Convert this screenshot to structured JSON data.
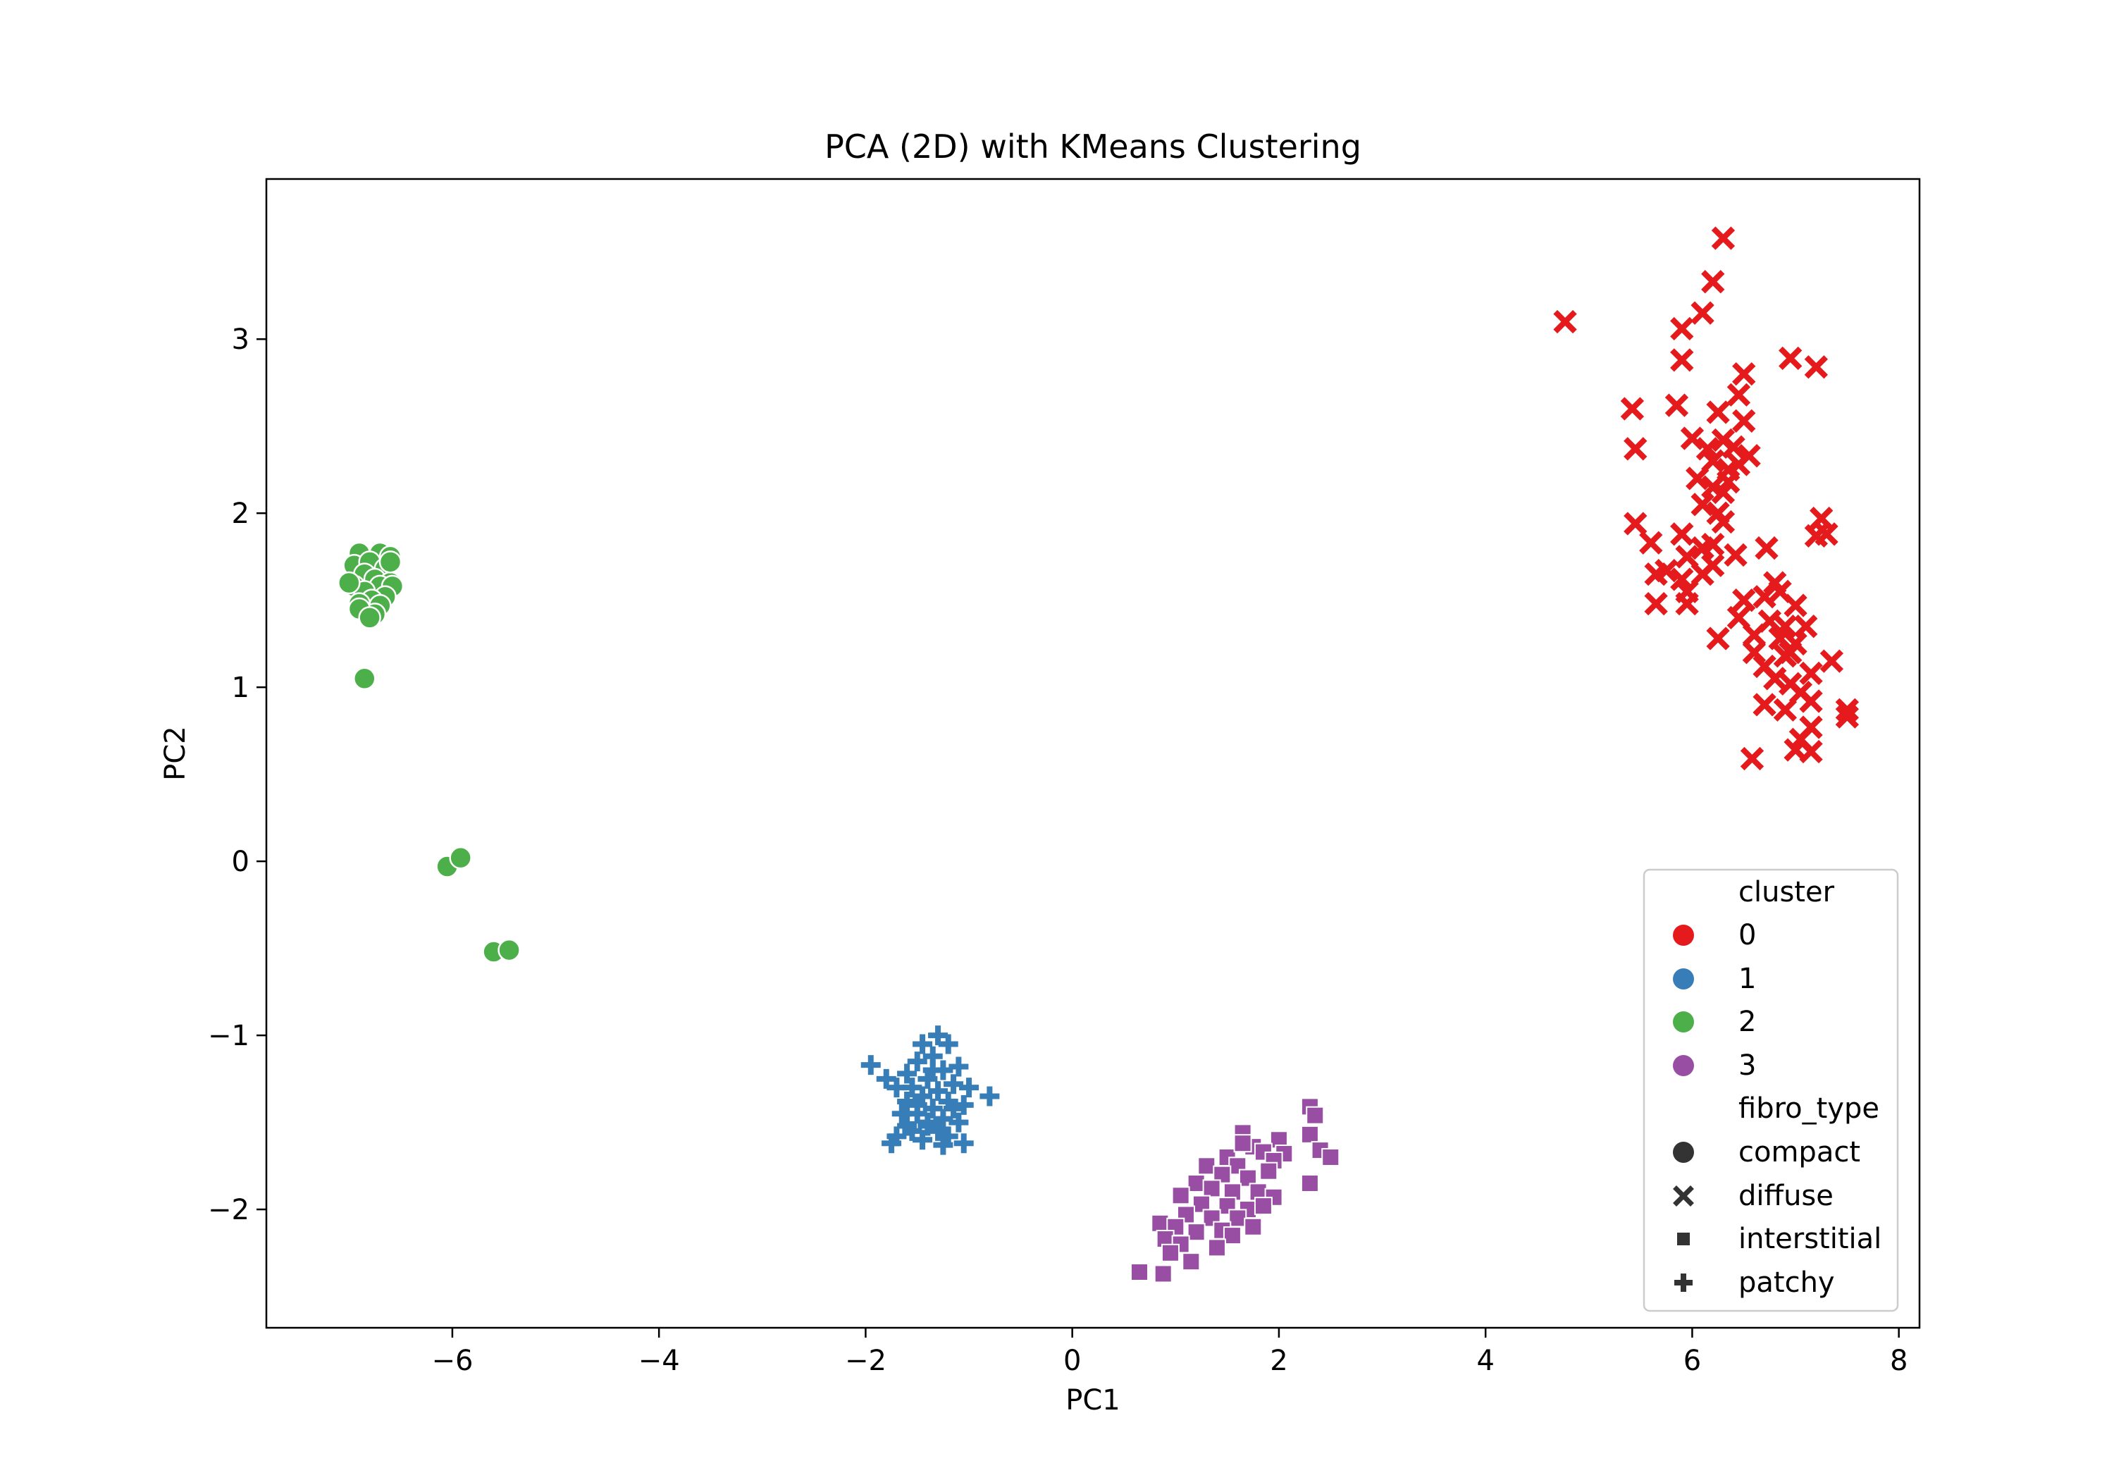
{
  "colors": {
    "cluster_0": "#e41a1c",
    "cluster_1": "#377eb8",
    "cluster_2": "#4daf4a",
    "cluster_3": "#984ea3",
    "legend_shape": "#333333"
  },
  "chart_data": {
    "type": "scatter",
    "title": "PCA (2D) with KMeans Clustering",
    "xlabel": "PC1",
    "ylabel": "PC2",
    "xlim": [
      -7.8,
      8.2
    ],
    "ylim": [
      -2.68,
      3.92
    ],
    "xticks": [
      -6,
      -4,
      -2,
      0,
      2,
      4,
      6,
      8
    ],
    "xtick_labels": [
      "−6",
      "−4",
      "−2",
      "0",
      "2",
      "4",
      "6",
      "8"
    ],
    "yticks": [
      -2,
      -1,
      0,
      1,
      2,
      3
    ],
    "ytick_labels": [
      "−2",
      "−1",
      "0",
      "1",
      "2",
      "3"
    ],
    "grid": false,
    "legend": {
      "placement": "lower-right",
      "hue_title": "cluster",
      "hue_entries": [
        "0",
        "1",
        "2",
        "3"
      ],
      "style_title": "fibro_type",
      "style_entries": [
        {
          "label": "compact",
          "marker": "circle"
        },
        {
          "label": "diffuse",
          "marker": "x"
        },
        {
          "label": "interstitial",
          "marker": "square"
        },
        {
          "label": "patchy",
          "marker": "plus"
        }
      ]
    },
    "series": [
      {
        "cluster": "0",
        "fibro_type": "diffuse",
        "marker": "x",
        "points": [
          [
            6.3,
            3.58
          ],
          [
            6.2,
            3.33
          ],
          [
            6.1,
            3.15
          ],
          [
            5.9,
            3.06
          ],
          [
            4.77,
            3.1
          ],
          [
            5.9,
            2.88
          ],
          [
            6.95,
            2.89
          ],
          [
            7.2,
            2.84
          ],
          [
            6.5,
            2.8
          ],
          [
            5.42,
            2.6
          ],
          [
            5.85,
            2.62
          ],
          [
            6.25,
            2.58
          ],
          [
            6.45,
            2.68
          ],
          [
            6.5,
            2.53
          ],
          [
            5.45,
            2.37
          ],
          [
            6.0,
            2.43
          ],
          [
            6.15,
            2.37
          ],
          [
            6.3,
            2.42
          ],
          [
            6.4,
            2.38
          ],
          [
            6.55,
            2.33
          ],
          [
            6.2,
            2.3
          ],
          [
            6.35,
            2.25
          ],
          [
            6.45,
            2.28
          ],
          [
            6.05,
            2.2
          ],
          [
            6.2,
            2.15
          ],
          [
            6.35,
            2.18
          ],
          [
            6.3,
            2.12
          ],
          [
            6.1,
            2.05
          ],
          [
            6.25,
            2.0
          ],
          [
            6.3,
            1.95
          ],
          [
            5.45,
            1.94
          ],
          [
            7.25,
            1.97
          ],
          [
            7.2,
            1.87
          ],
          [
            7.3,
            1.88
          ],
          [
            5.6,
            1.83
          ],
          [
            5.9,
            1.88
          ],
          [
            6.1,
            1.8
          ],
          [
            6.2,
            1.82
          ],
          [
            5.95,
            1.75
          ],
          [
            6.42,
            1.76
          ],
          [
            6.72,
            1.8
          ],
          [
            5.65,
            1.65
          ],
          [
            5.75,
            1.67
          ],
          [
            5.9,
            1.62
          ],
          [
            6.1,
            1.65
          ],
          [
            6.2,
            1.7
          ],
          [
            5.95,
            1.55
          ],
          [
            5.65,
            1.48
          ],
          [
            5.95,
            1.48
          ],
          [
            6.5,
            1.5
          ],
          [
            6.7,
            1.52
          ],
          [
            6.85,
            1.55
          ],
          [
            6.8,
            1.6
          ],
          [
            7.0,
            1.47
          ],
          [
            6.45,
            1.4
          ],
          [
            6.75,
            1.38
          ],
          [
            6.9,
            1.35
          ],
          [
            7.1,
            1.35
          ],
          [
            6.25,
            1.28
          ],
          [
            6.6,
            1.3
          ],
          [
            6.85,
            1.28
          ],
          [
            7.0,
            1.25
          ],
          [
            6.95,
            1.2
          ],
          [
            6.6,
            1.2
          ],
          [
            6.9,
            1.18
          ],
          [
            7.35,
            1.15
          ],
          [
            6.7,
            1.12
          ],
          [
            7.15,
            1.08
          ],
          [
            6.8,
            1.05
          ],
          [
            6.95,
            1.02
          ],
          [
            7.05,
            0.97
          ],
          [
            7.15,
            0.92
          ],
          [
            6.7,
            0.9
          ],
          [
            6.9,
            0.87
          ],
          [
            7.5,
            0.87
          ],
          [
            7.5,
            0.83
          ],
          [
            7.15,
            0.77
          ],
          [
            7.05,
            0.7
          ],
          [
            7.0,
            0.64
          ],
          [
            7.15,
            0.63
          ],
          [
            6.58,
            0.59
          ]
        ]
      },
      {
        "cluster": "1",
        "fibro_type": "patchy",
        "marker": "plus",
        "points": [
          [
            -1.95,
            -1.17
          ],
          [
            -1.8,
            -1.25
          ],
          [
            -1.6,
            -1.22
          ],
          [
            -1.45,
            -1.05
          ],
          [
            -1.3,
            -1.0
          ],
          [
            -1.2,
            -1.05
          ],
          [
            -1.35,
            -1.12
          ],
          [
            -1.5,
            -1.15
          ],
          [
            -1.1,
            -1.18
          ],
          [
            -1.25,
            -1.2
          ],
          [
            -1.4,
            -1.25
          ],
          [
            -1.55,
            -1.3
          ],
          [
            -1.7,
            -1.3
          ],
          [
            -1.15,
            -1.28
          ],
          [
            -1.0,
            -1.3
          ],
          [
            -1.3,
            -1.32
          ],
          [
            -1.45,
            -1.35
          ],
          [
            -1.6,
            -1.38
          ],
          [
            -1.05,
            -1.4
          ],
          [
            -0.8,
            -1.35
          ],
          [
            -1.2,
            -1.38
          ],
          [
            -1.35,
            -1.42
          ],
          [
            -1.5,
            -1.45
          ],
          [
            -1.65,
            -1.45
          ],
          [
            -1.25,
            -1.48
          ],
          [
            -1.1,
            -1.5
          ],
          [
            -1.4,
            -1.52
          ],
          [
            -1.55,
            -1.55
          ],
          [
            -1.3,
            -1.55
          ],
          [
            -1.2,
            -1.58
          ],
          [
            -1.45,
            -1.6
          ],
          [
            -1.75,
            -1.62
          ],
          [
            -1.25,
            -1.63
          ],
          [
            -1.05,
            -1.62
          ],
          [
            -1.4,
            -1.5
          ],
          [
            -1.6,
            -1.52
          ],
          [
            -1.15,
            -1.42
          ],
          [
            -1.35,
            -1.2
          ],
          [
            -1.5,
            -1.4
          ],
          [
            -1.7,
            -1.58
          ]
        ]
      },
      {
        "cluster": "2",
        "fibro_type": "compact",
        "marker": "circle",
        "points": [
          [
            -6.9,
            1.77
          ],
          [
            -6.7,
            1.77
          ],
          [
            -6.6,
            1.75
          ],
          [
            -6.95,
            1.7
          ],
          [
            -6.8,
            1.72
          ],
          [
            -6.65,
            1.68
          ],
          [
            -6.85,
            1.65
          ],
          [
            -6.75,
            1.62
          ],
          [
            -6.6,
            1.6
          ],
          [
            -6.95,
            1.58
          ],
          [
            -6.7,
            1.58
          ],
          [
            -6.58,
            1.58
          ],
          [
            -6.85,
            1.55
          ],
          [
            -7.0,
            1.6
          ],
          [
            -6.65,
            1.52
          ],
          [
            -6.78,
            1.5
          ],
          [
            -6.9,
            1.48
          ],
          [
            -6.7,
            1.47
          ],
          [
            -6.75,
            1.42
          ],
          [
            -6.9,
            1.45
          ],
          [
            -6.8,
            1.4
          ],
          [
            -6.6,
            1.72
          ],
          [
            -6.85,
            1.05
          ],
          [
            -6.05,
            -0.03
          ],
          [
            -5.92,
            0.02
          ],
          [
            -5.6,
            -0.52
          ],
          [
            -5.45,
            -0.51
          ]
        ]
      },
      {
        "cluster": "3",
        "fibro_type": "interstitial",
        "marker": "square",
        "points": [
          [
            2.3,
            -1.41
          ],
          [
            2.35,
            -1.46
          ],
          [
            2.3,
            -1.57
          ],
          [
            2.4,
            -1.66
          ],
          [
            2.5,
            -1.7
          ],
          [
            2.0,
            -1.6
          ],
          [
            2.05,
            -1.68
          ],
          [
            1.65,
            -1.56
          ],
          [
            1.75,
            -1.64
          ],
          [
            1.85,
            -1.67
          ],
          [
            1.95,
            -1.72
          ],
          [
            1.5,
            -1.7
          ],
          [
            1.6,
            -1.75
          ],
          [
            1.9,
            -1.78
          ],
          [
            1.3,
            -1.75
          ],
          [
            1.45,
            -1.8
          ],
          [
            1.7,
            -1.82
          ],
          [
            2.3,
            -1.85
          ],
          [
            1.2,
            -1.85
          ],
          [
            1.35,
            -1.88
          ],
          [
            1.55,
            -1.9
          ],
          [
            1.8,
            -1.9
          ],
          [
            1.95,
            -1.93
          ],
          [
            1.05,
            -1.92
          ],
          [
            1.25,
            -1.97
          ],
          [
            1.5,
            -1.98
          ],
          [
            1.7,
            -2.0
          ],
          [
            1.85,
            -1.98
          ],
          [
            1.1,
            -2.03
          ],
          [
            1.35,
            -2.05
          ],
          [
            1.6,
            -2.05
          ],
          [
            1.75,
            -2.1
          ],
          [
            0.85,
            -2.08
          ],
          [
            1.0,
            -2.1
          ],
          [
            1.2,
            -2.13
          ],
          [
            1.45,
            -2.12
          ],
          [
            1.55,
            -2.15
          ],
          [
            0.9,
            -2.17
          ],
          [
            1.05,
            -2.2
          ],
          [
            1.4,
            -2.22
          ],
          [
            0.95,
            -2.25
          ],
          [
            1.15,
            -2.3
          ],
          [
            0.65,
            -2.36
          ],
          [
            0.88,
            -2.37
          ],
          [
            1.65,
            -1.62
          ]
        ]
      }
    ]
  }
}
